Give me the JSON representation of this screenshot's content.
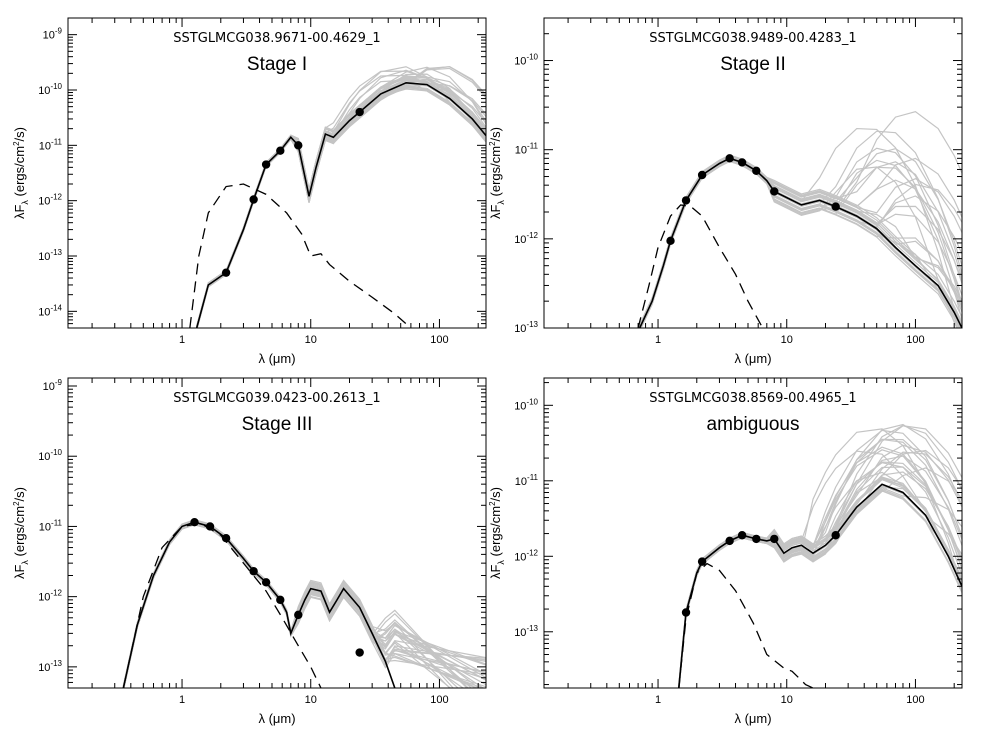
{
  "figure": {
    "xlabel": "λ (μm)",
    "ylabel": "λF_λ (ergs/cm²/s)",
    "x_ticks": [
      1,
      10,
      100
    ],
    "x_tick_labels": [
      "1",
      "10",
      "100"
    ]
  },
  "chart_data": [
    {
      "type": "line",
      "title": "SSTGLMCG038.9671-00.4629_1",
      "subtitle": "Stage I",
      "xscale": "log",
      "yscale": "log",
      "xlim": [
        0.13,
        230
      ],
      "ylim": [
        5e-15,
        2e-09
      ],
      "yticks": [
        {
          "value": 1e-14,
          "mant": "10",
          "exp": "-14"
        },
        {
          "value": 1e-13,
          "mant": "10",
          "exp": "-13"
        },
        {
          "value": 1e-12,
          "mant": "10",
          "exp": "-12"
        },
        {
          "value": 1e-11,
          "mant": "10",
          "exp": "-11"
        },
        {
          "value": 1e-10,
          "mant": "10",
          "exp": "-10"
        },
        {
          "value": 1e-09,
          "mant": "10",
          "exp": "-9"
        }
      ],
      "observed_points": [
        [
          2.2,
          5e-14
        ],
        [
          3.6,
          1.05e-12
        ],
        [
          4.5,
          4.5e-12
        ],
        [
          5.8,
          8e-12
        ],
        [
          8.0,
          1e-11
        ],
        [
          24,
          4e-11
        ]
      ],
      "best_fit": [
        [
          1.3,
          5e-15
        ],
        [
          1.6,
          3e-14
        ],
        [
          2.2,
          5e-14
        ],
        [
          3.0,
          3e-13
        ],
        [
          3.6,
          1.05e-12
        ],
        [
          4.5,
          4.5e-12
        ],
        [
          5.8,
          8e-12
        ],
        [
          7.0,
          1.4e-11
        ],
        [
          8.0,
          1e-11
        ],
        [
          9.7,
          1.2e-12
        ],
        [
          11,
          4e-12
        ],
        [
          13,
          1.6e-11
        ],
        [
          15,
          1.4e-11
        ],
        [
          20,
          2.8e-11
        ],
        [
          24,
          4e-11
        ],
        [
          35,
          8.5e-11
        ],
        [
          55,
          1.35e-10
        ],
        [
          80,
          1.25e-10
        ],
        [
          120,
          7e-11
        ],
        [
          180,
          3e-11
        ],
        [
          230,
          1.5e-11
        ]
      ],
      "stellar_photosphere": [
        [
          1.15,
          5e-15
        ],
        [
          1.35,
          1e-13
        ],
        [
          1.6,
          6e-13
        ],
        [
          2.2,
          1.8e-12
        ],
        [
          3.0,
          2e-12
        ],
        [
          4.5,
          1.3e-12
        ],
        [
          6.5,
          6e-13
        ],
        [
          8.5,
          2.5e-13
        ],
        [
          10,
          1e-13
        ],
        [
          12,
          1.1e-13
        ],
        [
          14,
          7e-14
        ],
        [
          20,
          3.5e-14
        ],
        [
          30,
          1.8e-14
        ],
        [
          45,
          9e-15
        ],
        [
          60,
          5e-15
        ]
      ],
      "grey_fits": {
        "count": 30,
        "peak_lambda_range": [
          40,
          110
        ],
        "peak_flux_range": [
          8e-11,
          3e-10
        ]
      }
    },
    {
      "type": "line",
      "title": "SSTGLMCG038.9489-00.4283_1",
      "subtitle": "Stage II",
      "xscale": "log",
      "yscale": "log",
      "xlim": [
        0.13,
        230
      ],
      "ylim": [
        1e-13,
        3e-10
      ],
      "yticks": [
        {
          "value": 1e-13,
          "mant": "10",
          "exp": "-13"
        },
        {
          "value": 1e-12,
          "mant": "10",
          "exp": "-12"
        },
        {
          "value": 1e-11,
          "mant": "10",
          "exp": "-11"
        },
        {
          "value": 1e-10,
          "mant": "10",
          "exp": "-10"
        }
      ],
      "observed_points": [
        [
          1.25,
          9.5e-13
        ],
        [
          1.65,
          2.7e-12
        ],
        [
          2.2,
          5.2e-12
        ],
        [
          3.6,
          8e-12
        ],
        [
          4.5,
          7.2e-12
        ],
        [
          5.8,
          5.8e-12
        ],
        [
          8.0,
          3.4e-12
        ],
        [
          24,
          2.3e-12
        ]
      ],
      "best_fit": [
        [
          0.72,
          1e-13
        ],
        [
          0.9,
          2e-13
        ],
        [
          1.1,
          5e-13
        ],
        [
          1.25,
          9.5e-13
        ],
        [
          1.65,
          2.7e-12
        ],
        [
          2.2,
          5.2e-12
        ],
        [
          3.0,
          7e-12
        ],
        [
          3.6,
          8e-12
        ],
        [
          4.5,
          7.2e-12
        ],
        [
          5.8,
          5.8e-12
        ],
        [
          7.0,
          4.5e-12
        ],
        [
          8.0,
          3.4e-12
        ],
        [
          10,
          2.9e-12
        ],
        [
          13,
          2.4e-12
        ],
        [
          18,
          2.7e-12
        ],
        [
          24,
          2.3e-12
        ],
        [
          35,
          1.8e-12
        ],
        [
          50,
          1.3e-12
        ],
        [
          70,
          8e-13
        ],
        [
          100,
          5e-13
        ],
        [
          150,
          3e-13
        ],
        [
          200,
          1.5e-13
        ],
        [
          230,
          1e-13
        ]
      ],
      "stellar_photosphere": [
        [
          0.7,
          1e-13
        ],
        [
          0.85,
          3e-13
        ],
        [
          1.0,
          8e-13
        ],
        [
          1.25,
          1.8e-12
        ],
        [
          1.5,
          2.4e-12
        ],
        [
          1.8,
          2.3e-12
        ],
        [
          2.2,
          1.8e-12
        ],
        [
          3.0,
          8e-13
        ],
        [
          4.0,
          4e-13
        ],
        [
          5.0,
          2e-13
        ],
        [
          6.5,
          1e-13
        ]
      ],
      "grey_fits": {
        "count": 30,
        "peak_lambda_range": [
          40,
          120
        ],
        "peak_flux_range": [
          2e-13,
          3e-11
        ]
      }
    },
    {
      "type": "line",
      "title": "SSTGLMCG039.0423-00.2613_1",
      "subtitle": "Stage III",
      "xscale": "log",
      "yscale": "log",
      "xlim": [
        0.13,
        230
      ],
      "ylim": [
        5e-14,
        1.3e-09
      ],
      "yticks": [
        {
          "value": 1e-13,
          "mant": "10",
          "exp": "-13"
        },
        {
          "value": 1e-12,
          "mant": "10",
          "exp": "-12"
        },
        {
          "value": 1e-11,
          "mant": "10",
          "exp": "-11"
        },
        {
          "value": 1e-10,
          "mant": "10",
          "exp": "-10"
        },
        {
          "value": 1e-09,
          "mant": "10",
          "exp": "-9"
        }
      ],
      "observed_points": [
        [
          1.25,
          1.15e-11
        ],
        [
          1.65,
          1e-11
        ],
        [
          2.2,
          6.8e-12
        ],
        [
          3.6,
          2.3e-12
        ],
        [
          4.5,
          1.6e-12
        ],
        [
          5.8,
          9e-13
        ],
        [
          8.0,
          5.5e-13
        ],
        [
          24,
          1.6e-13
        ]
      ],
      "best_fit": [
        [
          0.35,
          5e-14
        ],
        [
          0.45,
          4e-13
        ],
        [
          0.6,
          2e-12
        ],
        [
          0.8,
          6e-12
        ],
        [
          1.0,
          1e-11
        ],
        [
          1.25,
          1.15e-11
        ],
        [
          1.65,
          1e-11
        ],
        [
          2.2,
          6.8e-12
        ],
        [
          3.0,
          3.5e-12
        ],
        [
          3.6,
          2.3e-12
        ],
        [
          4.5,
          1.6e-12
        ],
        [
          5.8,
          9e-13
        ],
        [
          6.5,
          6e-13
        ],
        [
          7.0,
          3e-13
        ],
        [
          8.0,
          5.5e-13
        ],
        [
          9,
          9e-13
        ],
        [
          10,
          1.3e-12
        ],
        [
          12,
          1.2e-12
        ],
        [
          14,
          6e-13
        ],
        [
          16,
          9e-13
        ],
        [
          18,
          1.3e-12
        ],
        [
          24,
          7e-13
        ],
        [
          30,
          3e-13
        ],
        [
          38,
          1.2e-13
        ],
        [
          45,
          5e-14
        ]
      ],
      "stellar_photosphere": [
        [
          0.35,
          5e-14
        ],
        [
          0.5,
          1e-12
        ],
        [
          0.7,
          5e-12
        ],
        [
          1.0,
          1e-11
        ],
        [
          1.4,
          1.1e-11
        ],
        [
          2.0,
          7.5e-12
        ],
        [
          3.0,
          3e-12
        ],
        [
          4.5,
          1.2e-12
        ],
        [
          6.0,
          5e-13
        ],
        [
          8.0,
          2e-13
        ],
        [
          10,
          1e-13
        ],
        [
          12,
          5e-14
        ]
      ],
      "grey_fits": {
        "count": 30,
        "peak_lambda_range": [
          60,
          100
        ],
        "peak_flux_range": [
          3e-13,
          8e-13
        ]
      }
    },
    {
      "type": "line",
      "title": "SSTGLMCG038.8569-00.4965_1",
      "subtitle": "ambiguous",
      "xscale": "log",
      "yscale": "log",
      "xlim": [
        0.13,
        230
      ],
      "ylim": [
        1.8e-14,
        2.3e-10
      ],
      "yticks": [
        {
          "value": 1e-13,
          "mant": "10",
          "exp": "-13"
        },
        {
          "value": 1e-12,
          "mant": "10",
          "exp": "-12"
        },
        {
          "value": 1e-11,
          "mant": "10",
          "exp": "-11"
        },
        {
          "value": 1e-10,
          "mant": "10",
          "exp": "-10"
        }
      ],
      "observed_points": [
        [
          1.65,
          1.8e-13
        ],
        [
          2.2,
          8.5e-13
        ],
        [
          3.6,
          1.6e-12
        ],
        [
          4.5,
          1.9e-12
        ],
        [
          5.8,
          1.7e-12
        ],
        [
          8.0,
          1.7e-12
        ],
        [
          24,
          1.9e-12
        ]
      ],
      "best_fit": [
        [
          1.45,
          1.8e-14
        ],
        [
          1.55,
          6e-14
        ],
        [
          1.65,
          1.8e-13
        ],
        [
          2.0,
          6e-13
        ],
        [
          2.2,
          8.5e-13
        ],
        [
          3.0,
          1.3e-12
        ],
        [
          3.6,
          1.6e-12
        ],
        [
          4.5,
          1.9e-12
        ],
        [
          5.8,
          1.7e-12
        ],
        [
          7.0,
          1.6e-12
        ],
        [
          8.0,
          1.7e-12
        ],
        [
          9.5,
          1.1e-12
        ],
        [
          11,
          1.3e-12
        ],
        [
          13,
          1.4e-12
        ],
        [
          16,
          1.1e-12
        ],
        [
          20,
          1.4e-12
        ],
        [
          24,
          1.9e-12
        ],
        [
          35,
          4.5e-12
        ],
        [
          55,
          9e-12
        ],
        [
          80,
          7e-12
        ],
        [
          120,
          3.5e-12
        ],
        [
          180,
          1e-12
        ],
        [
          230,
          4e-13
        ]
      ],
      "stellar_photosphere": [
        [
          1.45,
          1.8e-14
        ],
        [
          1.65,
          1.5e-13
        ],
        [
          2.0,
          6e-13
        ],
        [
          2.4,
          8e-13
        ],
        [
          3.0,
          6.5e-13
        ],
        [
          4.0,
          3.5e-13
        ],
        [
          5.5,
          1.3e-13
        ],
        [
          7.0,
          5e-14
        ],
        [
          9.5,
          3.3e-14
        ],
        [
          11,
          3e-14
        ],
        [
          14,
          2e-14
        ],
        [
          16,
          1.8e-14
        ]
      ],
      "grey_fits": {
        "count": 34,
        "peak_lambda_range": [
          40,
          120
        ],
        "peak_flux_range": [
          2e-12,
          7e-11
        ]
      }
    }
  ]
}
